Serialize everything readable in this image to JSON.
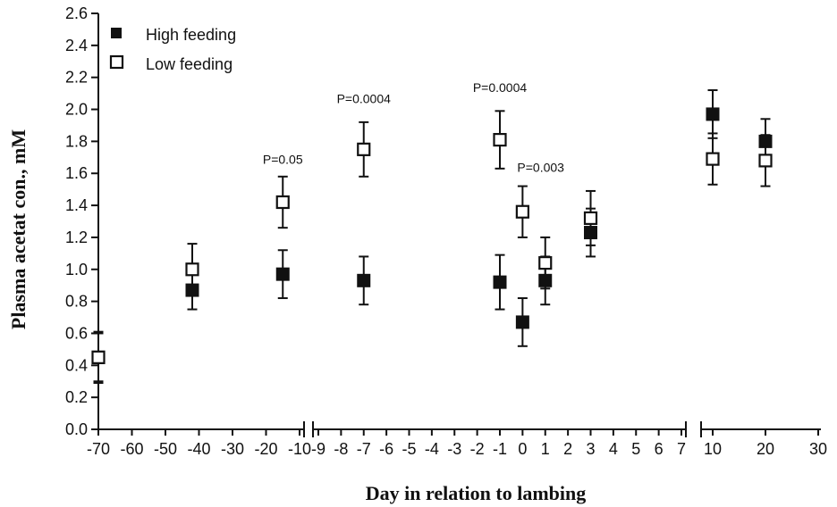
{
  "chart_data": {
    "type": "scatter",
    "xlabel": "Day in relation to lambing",
    "ylabel": "Plasma acetat con., mM",
    "ylim": [
      0,
      2.6
    ],
    "y_ticks": [
      "0.0",
      "0.2",
      "0.4",
      "0.6",
      "0.8",
      "1.0",
      "1.2",
      "1.4",
      "1.6",
      "1.8",
      "2.0",
      "2.2",
      "2.4",
      "2.6"
    ],
    "x_axis_segments": [
      {
        "range": [
          -70,
          -10
        ],
        "ticks": [
          "-70",
          "-60",
          "-50",
          "-40",
          "-30",
          "-20",
          "-10"
        ]
      },
      {
        "range": [
          -9,
          7
        ],
        "ticks": [
          "-9",
          "-8",
          "-7",
          "-6",
          "-5",
          "-4",
          "-3",
          "-2",
          "-1",
          "0",
          "1",
          "2",
          "3",
          "4",
          "5",
          "6",
          "7"
        ]
      },
      {
        "range": [
          10,
          30
        ],
        "ticks": [
          "10",
          "20",
          "30"
        ]
      }
    ],
    "legend_position": "top-left",
    "series": [
      {
        "name": "High feeding",
        "marker": "filled-square",
        "color": "#111111",
        "points": [
          {
            "x": -70,
            "y": 0.45,
            "err": 0.16
          },
          {
            "x": -42,
            "y": 0.87,
            "err": 0.12
          },
          {
            "x": -15,
            "y": 0.97,
            "err": 0.15
          },
          {
            "x": -7,
            "y": 0.93,
            "err": 0.15
          },
          {
            "x": -1,
            "y": 0.92,
            "err": 0.17
          },
          {
            "x": 0,
            "y": 0.67,
            "err": 0.15
          },
          {
            "x": 1,
            "y": 0.93,
            "err": 0.15
          },
          {
            "x": 3,
            "y": 1.23,
            "err": 0.15
          },
          {
            "x": 10,
            "y": 1.97,
            "err": 0.15
          },
          {
            "x": 20,
            "y": 1.8,
            "err": 0.14
          }
        ]
      },
      {
        "name": "Low feeding",
        "marker": "open-square",
        "color": "#111111",
        "points": [
          {
            "x": -70,
            "y": 0.45,
            "err": 0.15
          },
          {
            "x": -42,
            "y": 1.0,
            "err": 0.16
          },
          {
            "x": -15,
            "y": 1.42,
            "err": 0.16
          },
          {
            "x": -7,
            "y": 1.75,
            "err": 0.17
          },
          {
            "x": -1,
            "y": 1.81,
            "err": 0.18
          },
          {
            "x": 0,
            "y": 1.36,
            "err": 0.16
          },
          {
            "x": 1,
            "y": 1.04,
            "err": 0.16
          },
          {
            "x": 3,
            "y": 1.32,
            "err": 0.17
          },
          {
            "x": 10,
            "y": 1.69,
            "err": 0.16
          },
          {
            "x": 20,
            "y": 1.68,
            "err": 0.16
          }
        ]
      }
    ],
    "annotations": [
      {
        "text": "P=0.05",
        "x": -15,
        "y": 1.66
      },
      {
        "text": "P=0.0004",
        "x": -7,
        "y": 2.04
      },
      {
        "text": "P=0.0004",
        "x": -1,
        "y": 2.11
      },
      {
        "text": "P=0.003",
        "x": 0.8,
        "y": 1.61
      }
    ]
  }
}
